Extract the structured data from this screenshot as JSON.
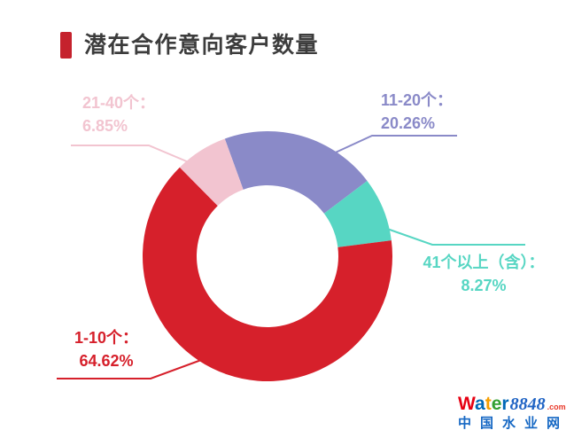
{
  "header": {
    "marker_color": "#c5222d"
  },
  "chart_data": {
    "type": "pie",
    "subtype": "donut",
    "title": "潜在合作意向客户数量",
    "legend": "none",
    "label_position": "outside-with-leader-lines",
    "unit": "%",
    "categories": [
      "1-10个",
      "11-20个",
      "21-40个",
      "41个以上（含）"
    ],
    "values": [
      64.62,
      20.26,
      6.85,
      8.27
    ],
    "series": [
      {
        "name": "1-10个",
        "value": 64.62,
        "name_label": "1-10个：",
        "pct_label": "64.62%",
        "color": "#d6202b"
      },
      {
        "name": "11-20个",
        "value": 20.26,
        "name_label": "11-20个：",
        "pct_label": "20.26%",
        "color": "#8a8ac8"
      },
      {
        "name": "21-40个",
        "value": 6.85,
        "name_label": "21-40个：",
        "pct_label": "6.85%",
        "color": "#f2c4d0"
      },
      {
        "name": "41个以上（含）",
        "value": 8.27,
        "name_label": "41个以上（含）：",
        "pct_label": "8.27%",
        "color": "#57d6c3"
      }
    ]
  },
  "logo": {
    "brand_letters": [
      {
        "ch": "W",
        "color": "#e60012"
      },
      {
        "ch": "a",
        "color": "#0068b7"
      },
      {
        "ch": "t",
        "color": "#f59e00"
      },
      {
        "ch": "e",
        "color": "#33a032"
      },
      {
        "ch": "r",
        "color": "#0068b7"
      }
    ],
    "brand_number": "8848",
    "brand_domain": ".com",
    "site_name": "中国水业网"
  }
}
